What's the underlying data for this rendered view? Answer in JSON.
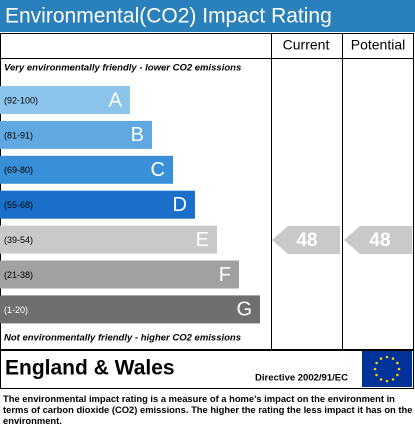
{
  "header": {
    "title": "Environmental(CO2) Impact Rating"
  },
  "columns": {
    "current": "Current",
    "potential": "Potential"
  },
  "top_note": "Very environmentally friendly - lower CO2 emissions",
  "bottom_note": "Not environmentally friendly - higher CO2 emissions",
  "bands": [
    {
      "range": "(92-100)",
      "letter": "A",
      "color": "#8cc4ec"
    },
    {
      "range": "(81-91)",
      "letter": "B",
      "color": "#5fa8e2"
    },
    {
      "range": "(69-80)",
      "letter": "C",
      "color": "#3990d8"
    },
    {
      "range": "(55-68)",
      "letter": "D",
      "color": "#1a6fc8"
    },
    {
      "range": "(39-54)",
      "letter": "E",
      "color": "#c9c9c9"
    },
    {
      "range": "(21-38)",
      "letter": "F",
      "color": "#a1a1a1"
    },
    {
      "range": "(1-20)",
      "letter": "G",
      "color": "#6f6f6f"
    }
  ],
  "ratings": {
    "current": "48",
    "potential": "48"
  },
  "footer": {
    "region": "England & Wales",
    "directive": "Directive 2002/91/EC",
    "description": "The environmental impact rating is a measure of a home's impact on the environment in terms of carbon dioxide (CO2) emissions. The higher the rating the less impact it has on the environment."
  }
}
